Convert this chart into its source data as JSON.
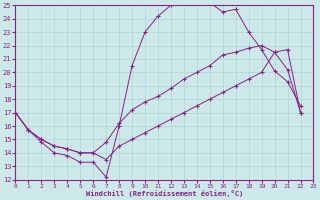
{
  "xlabel": "Windchill (Refroidissement éolien,°C)",
  "bg_color": "#cce8e8",
  "grid_color": "#aad8d8",
  "line_color": "#882288",
  "xlim": [
    0,
    23
  ],
  "ylim": [
    12,
    25
  ],
  "xticks": [
    0,
    1,
    2,
    3,
    4,
    5,
    6,
    7,
    8,
    9,
    10,
    11,
    12,
    13,
    14,
    15,
    16,
    17,
    18,
    19,
    20,
    21,
    22,
    23
  ],
  "yticks": [
    12,
    13,
    14,
    15,
    16,
    17,
    18,
    19,
    20,
    21,
    22,
    23,
    24,
    25
  ],
  "s1x": [
    0,
    1,
    2,
    3,
    4,
    5,
    6,
    7,
    8,
    9,
    10,
    11,
    12,
    13,
    14,
    15,
    16,
    17,
    18,
    19,
    20,
    21,
    22
  ],
  "s1y": [
    17.0,
    15.7,
    14.8,
    14.0,
    13.8,
    13.3,
    13.3,
    12.2,
    16.0,
    20.5,
    23.0,
    24.2,
    25.0,
    25.3,
    25.2,
    25.2,
    24.5,
    24.7,
    23.0,
    21.7,
    20.1,
    19.3,
    17.5
  ],
  "s2x": [
    0,
    1,
    2,
    3,
    4,
    5,
    6,
    7,
    8,
    9,
    10,
    11,
    12,
    13,
    14,
    15,
    16,
    17,
    18,
    19,
    20,
    21,
    22
  ],
  "s2y": [
    17.0,
    15.7,
    15.0,
    14.5,
    14.3,
    14.0,
    14.0,
    14.8,
    16.2,
    17.2,
    17.8,
    18.2,
    18.8,
    19.5,
    20.0,
    20.5,
    21.3,
    21.5,
    21.8,
    22.0,
    21.5,
    20.2,
    17.0
  ],
  "s3x": [
    0,
    1,
    2,
    3,
    4,
    5,
    6,
    7,
    8,
    9,
    10,
    11,
    12,
    13,
    14,
    15,
    16,
    17,
    18,
    19,
    20,
    21,
    22
  ],
  "s3y": [
    17.0,
    15.7,
    15.0,
    14.5,
    14.3,
    14.0,
    14.0,
    13.5,
    14.5,
    15.0,
    15.5,
    16.0,
    16.5,
    17.0,
    17.5,
    18.0,
    18.5,
    19.0,
    19.5,
    20.0,
    21.5,
    21.7,
    17.0
  ]
}
